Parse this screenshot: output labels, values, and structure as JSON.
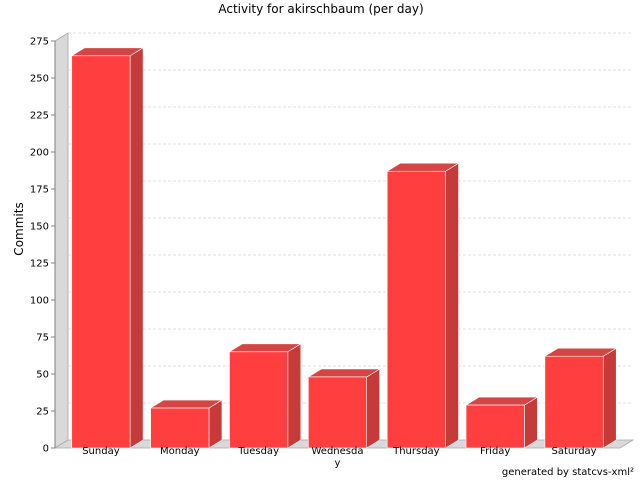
{
  "chart_data": {
    "type": "bar",
    "title": "Activity for akirschbaum (per day)",
    "xlabel": "",
    "ylabel": "Commits",
    "categories": [
      "Sunday",
      "Monday",
      "Tuesday",
      "Wednesday",
      "Thursday",
      "Friday",
      "Saturday"
    ],
    "category_labels": [
      [
        "Sunday"
      ],
      [
        "Monday"
      ],
      [
        "Tuesday"
      ],
      [
        "Wednesda",
        "y"
      ],
      [
        "Thursday"
      ],
      [
        "Friday"
      ],
      [
        "Saturday"
      ]
    ],
    "values": [
      265,
      27,
      65,
      48,
      187,
      29,
      62
    ],
    "ylim": [
      0,
      275
    ],
    "yticks": [
      0,
      25,
      50,
      75,
      100,
      125,
      150,
      175,
      200,
      225,
      250,
      275
    ],
    "grid": true,
    "bar_color": "#ff3f3f",
    "bar_side_color": "#c63a3a",
    "bar_top_color": "#d64545"
  },
  "footer": {
    "credit": "generated by statcvs-xml²"
  }
}
